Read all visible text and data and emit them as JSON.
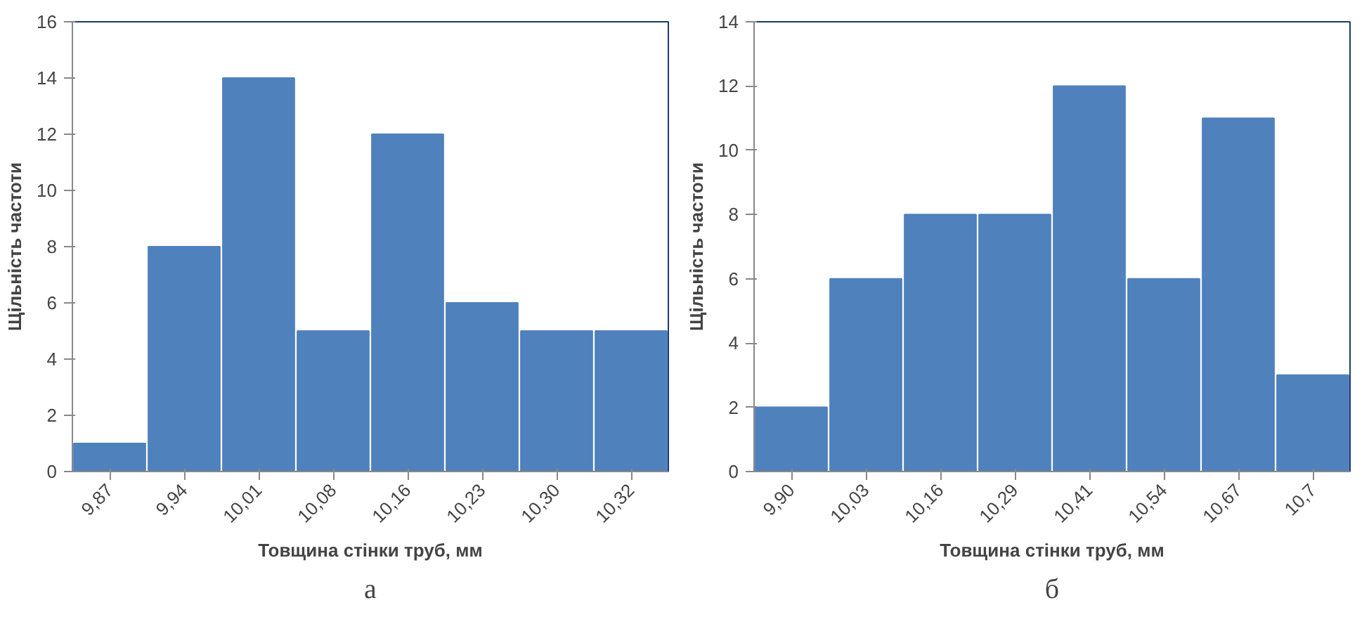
{
  "chart_data": [
    {
      "type": "bar",
      "xlabel": "Товщина стінки труб, мм",
      "ylabel": "Щільність частоти",
      "categories": [
        "9,87",
        "9,94",
        "10,01",
        "10,08",
        "10,16",
        "10,23",
        "10,30",
        "10,32"
      ],
      "values": [
        1,
        8,
        14,
        5,
        12,
        6,
        5,
        5
      ],
      "color": "#4f81bd",
      "ylim": [
        0,
        16
      ],
      "yticks": [
        0,
        2,
        4,
        6,
        8,
        10,
        12,
        14,
        16
      ],
      "annotations": [
        "а"
      ]
    },
    {
      "type": "bar",
      "xlabel": "Товщина стінки труб, мм",
      "ylabel": "Щільність частоти",
      "categories": [
        "9,90",
        "10,03",
        "10,16",
        "10,29",
        "10,41",
        "10,54",
        "10,67",
        "10,7"
      ],
      "values": [
        2,
        6,
        8,
        8,
        12,
        6,
        11,
        3
      ],
      "color": "#4f81bd",
      "ylim": [
        0,
        14
      ],
      "yticks": [
        0,
        2,
        4,
        6,
        8,
        10,
        12,
        14
      ],
      "annotations": [
        "б"
      ]
    }
  ]
}
